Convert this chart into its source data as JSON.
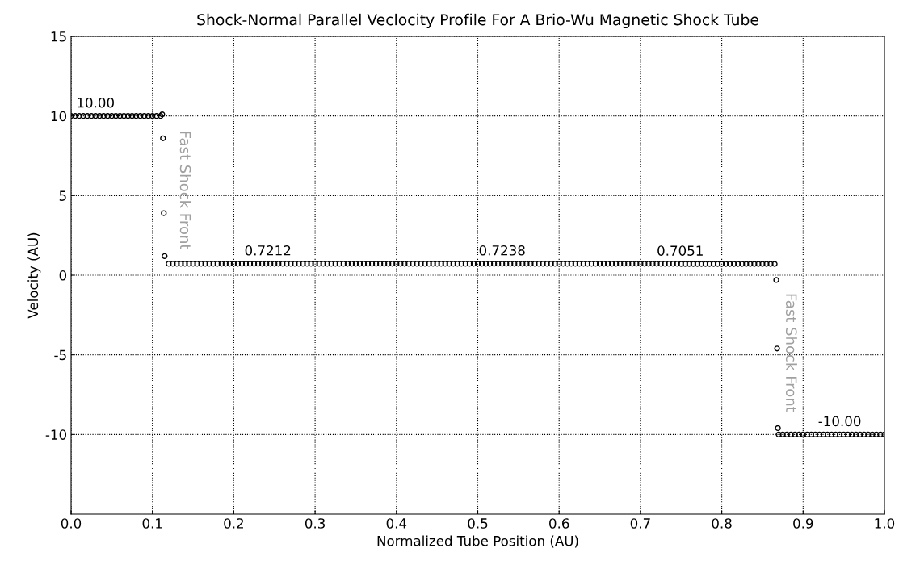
{
  "chart_data": {
    "type": "scatter",
    "title": "Shock-Normal Parallel Veclocity Profile For A Brio-Wu Magnetic Shock Tube",
    "xlabel": "Normalized Tube Position (AU)",
    "ylabel": "Velocity (AU)",
    "x": [
      0.0,
      0.005,
      0.01,
      0.015,
      0.02,
      0.025,
      0.03,
      0.035,
      0.04,
      0.045,
      0.05,
      0.055,
      0.06,
      0.065,
      0.07,
      0.075,
      0.08,
      0.085,
      0.09,
      0.095,
      0.1,
      0.105,
      0.11,
      0.112,
      0.113,
      0.114,
      0.115,
      0.12,
      0.125,
      0.13,
      0.135,
      0.14,
      0.145,
      0.15,
      0.155,
      0.16,
      0.165,
      0.17,
      0.175,
      0.18,
      0.185,
      0.19,
      0.195,
      0.2,
      0.205,
      0.21,
      0.215,
      0.22,
      0.225,
      0.23,
      0.235,
      0.24,
      0.245,
      0.25,
      0.255,
      0.26,
      0.265,
      0.27,
      0.275,
      0.28,
      0.285,
      0.29,
      0.295,
      0.3,
      0.305,
      0.31,
      0.315,
      0.32,
      0.325,
      0.33,
      0.335,
      0.34,
      0.345,
      0.35,
      0.355,
      0.36,
      0.365,
      0.37,
      0.375,
      0.38,
      0.385,
      0.39,
      0.395,
      0.4,
      0.405,
      0.41,
      0.415,
      0.42,
      0.425,
      0.43,
      0.435,
      0.44,
      0.445,
      0.45,
      0.455,
      0.46,
      0.465,
      0.47,
      0.475,
      0.48,
      0.485,
      0.49,
      0.495,
      0.5,
      0.505,
      0.51,
      0.515,
      0.52,
      0.525,
      0.53,
      0.535,
      0.54,
      0.545,
      0.55,
      0.555,
      0.56,
      0.565,
      0.57,
      0.575,
      0.58,
      0.585,
      0.59,
      0.595,
      0.6,
      0.605,
      0.61,
      0.615,
      0.62,
      0.625,
      0.63,
      0.635,
      0.64,
      0.645,
      0.65,
      0.655,
      0.66,
      0.665,
      0.67,
      0.675,
      0.68,
      0.685,
      0.69,
      0.695,
      0.7,
      0.705,
      0.71,
      0.715,
      0.72,
      0.725,
      0.73,
      0.735,
      0.74,
      0.745,
      0.75,
      0.755,
      0.76,
      0.765,
      0.77,
      0.775,
      0.78,
      0.785,
      0.79,
      0.795,
      0.8,
      0.805,
      0.81,
      0.815,
      0.82,
      0.825,
      0.83,
      0.835,
      0.84,
      0.845,
      0.85,
      0.855,
      0.86,
      0.865,
      0.867,
      0.868,
      0.869,
      0.87,
      0.875,
      0.88,
      0.885,
      0.89,
      0.895,
      0.9,
      0.905,
      0.91,
      0.915,
      0.92,
      0.925,
      0.93,
      0.935,
      0.94,
      0.945,
      0.95,
      0.955,
      0.96,
      0.965,
      0.97,
      0.975,
      0.98,
      0.985,
      0.99,
      0.995,
      1.0
    ],
    "values": [
      10,
      10,
      10,
      10,
      10,
      10,
      10,
      10,
      10,
      10,
      10,
      10,
      10,
      10,
      10,
      10,
      10,
      10,
      10,
      10,
      10,
      10,
      10,
      10.1,
      8.6,
      3.9,
      1.2,
      0.72,
      0.72,
      0.72,
      0.72,
      0.72,
      0.72,
      0.72,
      0.72,
      0.72,
      0.72,
      0.72,
      0.72,
      0.72,
      0.72,
      0.72,
      0.72,
      0.72,
      0.72,
      0.72,
      0.72,
      0.72,
      0.72,
      0.72,
      0.72,
      0.72,
      0.72,
      0.72,
      0.72,
      0.72,
      0.72,
      0.72,
      0.72,
      0.72,
      0.72,
      0.72,
      0.72,
      0.72,
      0.72,
      0.72,
      0.72,
      0.72,
      0.72,
      0.72,
      0.72,
      0.72,
      0.72,
      0.72,
      0.72,
      0.72,
      0.72,
      0.72,
      0.72,
      0.72,
      0.72,
      0.72,
      0.72,
      0.72,
      0.72,
      0.72,
      0.72,
      0.72,
      0.72,
      0.72,
      0.72,
      0.72,
      0.72,
      0.72,
      0.72,
      0.72,
      0.72,
      0.72,
      0.72,
      0.72,
      0.72,
      0.72,
      0.72,
      0.72,
      0.72,
      0.72,
      0.72,
      0.72,
      0.72,
      0.72,
      0.72,
      0.72,
      0.72,
      0.72,
      0.72,
      0.72,
      0.72,
      0.72,
      0.72,
      0.72,
      0.72,
      0.72,
      0.72,
      0.72,
      0.72,
      0.72,
      0.72,
      0.72,
      0.72,
      0.72,
      0.72,
      0.72,
      0.72,
      0.72,
      0.72,
      0.72,
      0.72,
      0.72,
      0.72,
      0.72,
      0.72,
      0.72,
      0.72,
      0.72,
      0.72,
      0.72,
      0.72,
      0.72,
      0.72,
      0.72,
      0.72,
      0.72,
      0.72,
      0.71,
      0.71,
      0.71,
      0.71,
      0.71,
      0.71,
      0.71,
      0.71,
      0.71,
      0.71,
      0.71,
      0.71,
      0.71,
      0.71,
      0.71,
      0.71,
      0.71,
      0.71,
      0.71,
      0.71,
      0.71,
      0.71,
      0.71,
      0.71,
      -0.3,
      -4.6,
      -9.6,
      -10,
      -10,
      -10,
      -10,
      -10,
      -10,
      -10,
      -10,
      -10,
      -10,
      -10,
      -10,
      -10,
      -10,
      -10,
      -10,
      -10,
      -10,
      -10,
      -10,
      -10,
      -10,
      -10,
      -10,
      -10,
      -10,
      -10
    ],
    "color": "#000000",
    "marker": "circle",
    "grid": true,
    "xlim": [
      0.0,
      1.0
    ],
    "xticks": [
      {
        "value": 0,
        "label": "0.0"
      },
      0.1,
      0.2,
      0.3,
      0.4,
      0.5,
      0.6,
      0.7,
      0.8,
      0.9,
      {
        "value": 1,
        "label": "1.0"
      }
    ],
    "ylim": [
      -15,
      15
    ],
    "yticks": [
      -10,
      -5,
      0,
      5,
      10,
      15
    ],
    "annotations": [
      {
        "text": "10.00",
        "x": 0.03,
        "y": 10
      },
      {
        "text": "0.7212",
        "x": 0.242,
        "y": 0.7212
      },
      {
        "text": "0.7238",
        "x": 0.53,
        "y": 0.7238
      },
      {
        "text": "0.7051",
        "x": 0.749,
        "y": 0.7051
      },
      {
        "text": "-10.00",
        "x": 0.945,
        "y": -10
      },
      "Fast Shock Front",
      "Fast Shock Front"
    ]
  }
}
